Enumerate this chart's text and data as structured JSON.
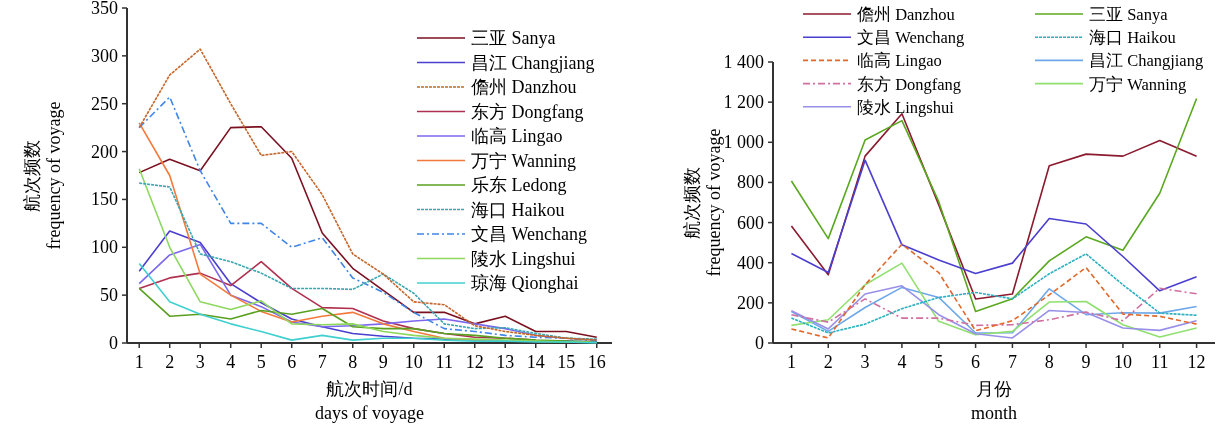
{
  "chart_data": [
    {
      "type": "line",
      "xlabel": "航次时间/d\ndays of voyage",
      "ylabel": "航次频数\nfrequency of voyage",
      "x": [
        1,
        2,
        3,
        4,
        5,
        6,
        7,
        8,
        9,
        10,
        11,
        12,
        13,
        14,
        15,
        16
      ],
      "xlim": [
        0.6,
        16.5
      ],
      "xticks": [
        1,
        2,
        3,
        4,
        5,
        6,
        7,
        8,
        9,
        10,
        11,
        12,
        13,
        14,
        15,
        16
      ],
      "ylim": [
        0,
        350
      ],
      "yticks": [
        0,
        50,
        100,
        150,
        200,
        250,
        300,
        350
      ],
      "legend": "top right",
      "series": [
        {
          "name": "三亚 Sanya",
          "color": "#7b1020",
          "line_style": "solid",
          "values": [
            178,
            192,
            180,
            225,
            226,
            193,
            115,
            78,
            55,
            32,
            32,
            20,
            28,
            12,
            12,
            6
          ]
        },
        {
          "name": "昌江 Changjiang",
          "color": "#4a3fcf",
          "line_style": "solid",
          "values": [
            75,
            117,
            105,
            62,
            42,
            25,
            17,
            10,
            7,
            5,
            4,
            3,
            2,
            2,
            2,
            1
          ]
        },
        {
          "name": "儋州 Danzhou",
          "color": "#c8662a",
          "line_style": "dotted",
          "values": [
            225,
            280,
            307,
            250,
            196,
            200,
            155,
            93,
            72,
            43,
            40,
            18,
            12,
            8,
            5,
            3
          ]
        },
        {
          "name": "东方 Dongfang",
          "color": "#b0304f",
          "line_style": "solid",
          "values": [
            57,
            68,
            73,
            60,
            85,
            57,
            37,
            36,
            23,
            15,
            10,
            6,
            5,
            3,
            null,
            null
          ]
        },
        {
          "name": "临高 Lingao",
          "color": "#7b68ee",
          "line_style": "solid",
          "values": [
            62,
            92,
            103,
            50,
            38,
            22,
            17,
            18,
            20,
            23,
            25,
            20,
            15,
            8,
            5,
            3
          ]
        },
        {
          "name": "万宁 Wanning",
          "color": "#f47a3c",
          "line_style": "solid",
          "values": [
            230,
            175,
            72,
            50,
            33,
            22,
            28,
            32,
            20,
            12,
            5,
            3,
            2,
            null,
            null,
            null
          ]
        },
        {
          "name": "乐东 Ledong",
          "color": "#5aa020",
          "line_style": "solid",
          "values": [
            57,
            28,
            30,
            25,
            34,
            30,
            36,
            17,
            15,
            15,
            10,
            8,
            5,
            3,
            2,
            1
          ]
        },
        {
          "name": "海口 Haikou",
          "color": "#3aa6b0",
          "line_style": "dotted",
          "values": [
            167,
            163,
            93,
            85,
            73,
            57,
            57,
            56,
            72,
            52,
            20,
            15,
            16,
            10,
            5,
            4
          ]
        },
        {
          "name": "文昌 Wenchang",
          "color": "#3f86e8",
          "line_style": "dashdot",
          "values": [
            225,
            257,
            180,
            125,
            125,
            100,
            110,
            68,
            53,
            32,
            15,
            12,
            8,
            6,
            5,
            2
          ]
        },
        {
          "name": "陵水 Lingshui",
          "color": "#8fd860",
          "line_style": "solid",
          "values": [
            182,
            100,
            43,
            35,
            44,
            20,
            19,
            20,
            12,
            8,
            5,
            4,
            3,
            2,
            1,
            1
          ]
        },
        {
          "name": "琼海 Qionghai",
          "color": "#40d0d0",
          "line_style": "solid",
          "values": [
            83,
            43,
            30,
            20,
            12,
            3,
            8,
            3,
            5,
            5,
            3,
            2,
            2,
            1,
            1,
            0
          ]
        }
      ]
    },
    {
      "type": "line",
      "xlabel": "月份\nmonth",
      "ylabel": "航次频数\nfrequency of voyage",
      "x": [
        1,
        2,
        3,
        4,
        5,
        6,
        7,
        8,
        9,
        10,
        11,
        12
      ],
      "xlim": [
        0.5,
        12.5
      ],
      "xticks": [
        1,
        2,
        3,
        4,
        5,
        6,
        7,
        8,
        9,
        10,
        11,
        12
      ],
      "ylim": [
        0,
        1400
      ],
      "yticks": [
        0,
        200,
        400,
        600,
        800,
        {
          "value": 1000,
          "label": "1 000"
        },
        {
          "value": 1200,
          "label": "1 200"
        },
        {
          "value": 1400,
          "label": "1 400"
        }
      ],
      "legend": "top",
      "series": [
        {
          "name": "儋州 Danzhou",
          "color": "#8b1a2e",
          "line_style": "solid",
          "values": [
            583,
            340,
            931,
            1142,
            688,
            219,
            244,
            883,
            941,
            931,
            1009,
            930
          ]
        },
        {
          "name": "三亚 Sanya",
          "color": "#5aa820",
          "line_style": "solid",
          "values": [
            807,
            520,
            1011,
            1108,
            704,
            157,
            220,
            409,
            529,
            462,
            746,
            1218
          ]
        },
        {
          "name": "文昌 Wenchang",
          "color": "#4b3fcf",
          "line_style": "solid",
          "values": [
            446,
            351,
            911,
            489,
            414,
            346,
            398,
            620,
            593,
            431,
            260,
            330
          ]
        },
        {
          "name": "海口 Haikou",
          "color": "#2ab0c0",
          "line_style": "dotted",
          "values": [
            124,
            50,
            94,
            171,
            227,
            252,
            220,
            345,
            444,
            290,
            149,
            138
          ]
        },
        {
          "name": "临高 Lingao",
          "color": "#e0682a",
          "line_style": "dashed",
          "values": [
            70,
            25,
            290,
            492,
            351,
            61,
            111,
            240,
            376,
            144,
            133,
            94
          ]
        },
        {
          "name": "昌江 Changjiang",
          "color": "#6ea8e8",
          "line_style": "solid",
          "values": [
            157,
            58,
            177,
            277,
            227,
            50,
            51,
            270,
            141,
            151,
            149,
            182
          ]
        },
        {
          "name": "东方 Dongfang",
          "color": "#d070a0",
          "line_style": "dashdot",
          "values": [
            141,
            104,
            220,
            124,
            124,
            88,
            91,
            116,
            154,
            111,
            273,
            245
          ]
        },
        {
          "name": "万宁 Wanning",
          "color": "#90e070",
          "line_style": "solid",
          "values": [
            88,
            116,
            290,
            398,
            108,
            41,
            58,
            204,
            207,
            91,
            30,
            75
          ]
        },
        {
          "name": "陵水 Lingshui",
          "color": "#9890e8",
          "line_style": "solid",
          "values": [
            161,
            70,
            244,
            285,
            141,
            46,
            25,
            162,
            152,
            75,
            63,
            111
          ]
        }
      ]
    }
  ]
}
